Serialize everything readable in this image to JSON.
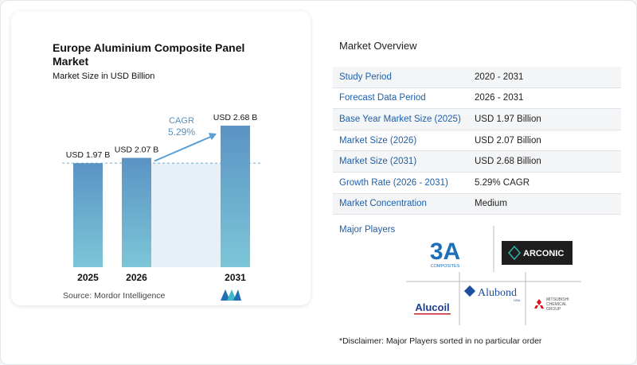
{
  "chart_data": {
    "type": "bar",
    "title": "Europe Aluminium Composite Panel Market",
    "subtitle": "Market Size in USD Billion",
    "categories": [
      "2025",
      "2026",
      "2031"
    ],
    "values": [
      1.97,
      2.07,
      2.68
    ],
    "value_labels": [
      "USD 1.97 B",
      "USD 2.07 B",
      "USD 2.68 B"
    ],
    "ylim": [
      0,
      2.68
    ],
    "cagr_label": "CAGR",
    "cagr_value": "5.29%",
    "colors": {
      "bar_top": "#5b93c4",
      "bar_bottom": "#7cc6d8",
      "shade": "#e7eff7",
      "dashed": "#7aa7c8",
      "arrow": "#5aa0d6"
    }
  },
  "source": "Source:  Mordor Intelligence",
  "overview": {
    "title": "Market Overview",
    "rows": [
      {
        "label": "Study Period",
        "value": "2020 - 2031"
      },
      {
        "label": "Forecast Data Period",
        "value": "2026 - 2031"
      },
      {
        "label": "Base Year Market Size (2025)",
        "value": "USD 1.97 Billion"
      },
      {
        "label": "Market Size (2026)",
        "value": "USD 2.07 Billion"
      },
      {
        "label": "Market Size (2031)",
        "value": "USD 2.68 Billion"
      },
      {
        "label": "Growth Rate (2026 - 2031)",
        "value": "5.29% CAGR"
      },
      {
        "label": "Market Concentration",
        "value": "Medium"
      }
    ]
  },
  "players": {
    "title": "Major Players",
    "logos": [
      {
        "name": "3A",
        "sub": "COMPOSITES",
        "icon": "3a-composites-logo"
      },
      {
        "name": "ARCONIC",
        "icon": "arconic-logo"
      },
      {
        "name": "Alubond",
        "sub": "USA",
        "icon": "alubond-logo"
      },
      {
        "name": "Alucoil",
        "icon": "alucoil-logo"
      },
      {
        "name": "MITSUBISHI CHEMICAL GROUP",
        "icon": "mitsubishi-logo"
      }
    ]
  },
  "disclaimer": "*Disclaimer: Major Players sorted in no particular order"
}
